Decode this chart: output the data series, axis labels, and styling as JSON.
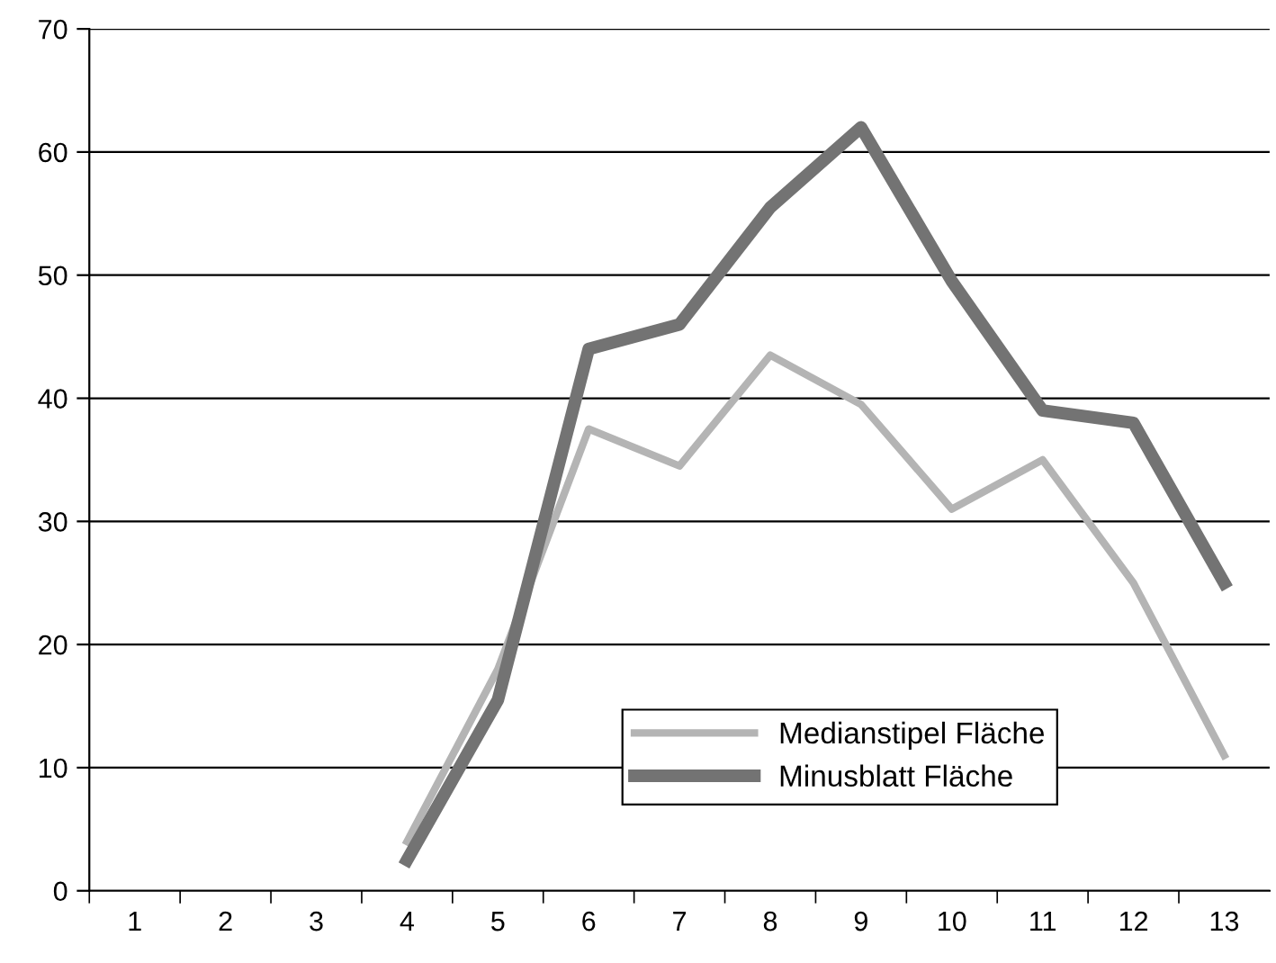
{
  "chart_data": {
    "type": "line",
    "categories": [
      "1",
      "2",
      "3",
      "4",
      "5",
      "6",
      "7",
      "8",
      "9",
      "10",
      "11",
      "12",
      "13"
    ],
    "series": [
      {
        "name": "Medianstipel Fläche",
        "color": "#b4b4b4",
        "values": [
          null,
          null,
          null,
          4,
          18,
          37.5,
          34.5,
          43.5,
          39.5,
          31,
          35,
          25,
          11
        ]
      },
      {
        "name": "Minusblatt Fläche",
        "color": "#737373",
        "values": [
          null,
          null,
          null,
          2.5,
          15.5,
          44,
          46,
          55.5,
          62,
          49.5,
          39,
          38,
          25
        ]
      }
    ],
    "ylim": [
      0,
      70
    ],
    "yticks": [
      0,
      10,
      20,
      30,
      40,
      50,
      60,
      70
    ],
    "grid": "y",
    "legend": "bottom right",
    "marker": "none",
    "line_style": "solid"
  }
}
